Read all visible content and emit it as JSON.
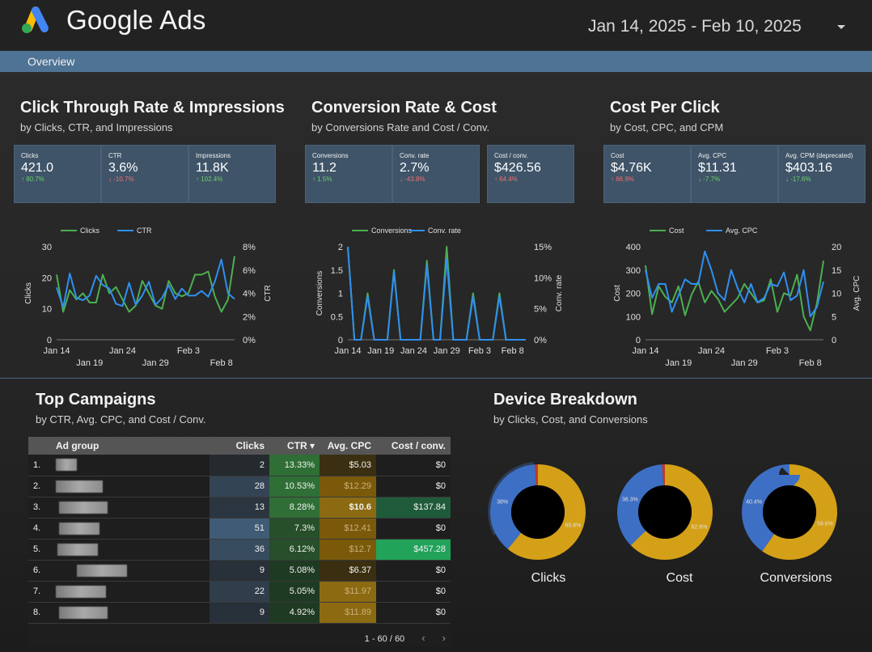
{
  "header": {
    "brand": "Google Ads",
    "date_range": "Jan 14, 2025 - Feb 10, 2025"
  },
  "nav": {
    "tab": "Overview"
  },
  "sections": [
    {
      "title": "Click Through Rate & Impressions",
      "subtitle": "by Clicks, CTR, and Impressions",
      "kpis": [
        {
          "label": "Clicks",
          "value": "421.0",
          "delta": "↑ 80.7%",
          "dir": "up"
        },
        {
          "label": "CTR",
          "value": "3.6%",
          "delta": "↓ -10.7%",
          "dir": "down"
        },
        {
          "label": "Impressions",
          "value": "11.8K",
          "delta": "↑ 102.4%",
          "dir": "up"
        }
      ]
    },
    {
      "title": "Conversion Rate & Cost",
      "subtitle": "by Conversions Rate and Cost / Conv.",
      "kpis": [
        {
          "label": "Conversions",
          "value": "11.2",
          "delta": "↑ 1.5%",
          "dir": "up"
        },
        {
          "label": "Conv. rate",
          "value": "2.7%",
          "delta": "↓ -43.8%",
          "dir": "down"
        },
        {
          "label": "Cost / conv.",
          "value": "$426.56",
          "delta": "↑ 64.4%",
          "dir": "down"
        }
      ]
    },
    {
      "title": "Cost Per Click",
      "subtitle": "by Cost, CPC, and CPM",
      "kpis": [
        {
          "label": "Cost",
          "value": "$4.76K",
          "delta": "↑ 66.9%",
          "dir": "down"
        },
        {
          "label": "Avg. CPC",
          "value": "$11.31",
          "delta": "↓ -7.7%",
          "dir": "up"
        },
        {
          "label": "Avg. CPM (deprecated)",
          "value": "$403.16",
          "delta": "↓ -17.6%",
          "dir": "up"
        }
      ]
    }
  ],
  "colors": {
    "green": "#4caf50",
    "blue": "#2f8ff0",
    "donut_blue": "#3d6fc4",
    "donut_gold": "#d4a017",
    "donut_red": "#c0392b",
    "ctr_bg": "#2e6b34",
    "cpc_bg": "#8a6a10",
    "cost_bg_mid": "#1f5a3a",
    "cost_bg_high": "#21a35a"
  },
  "chart_data": [
    {
      "type": "line",
      "x": [
        "Jan 14",
        "Jan 15",
        "Jan 16",
        "Jan 17",
        "Jan 18",
        "Jan 19",
        "Jan 20",
        "Jan 21",
        "Jan 22",
        "Jan 23",
        "Jan 24",
        "Jan 25",
        "Jan 26",
        "Jan 27",
        "Jan 28",
        "Jan 29",
        "Jan 30",
        "Jan 31",
        "Feb 1",
        "Feb 2",
        "Feb 3",
        "Feb 4",
        "Feb 5",
        "Feb 6",
        "Feb 7",
        "Feb 8",
        "Feb 9",
        "Feb 10"
      ],
      "xticks_top": [
        "Jan 14",
        "Jan 24",
        "Feb 3"
      ],
      "xticks_bottom": [
        "Jan 19",
        "Jan 29",
        "Feb 8"
      ],
      "series": [
        {
          "name": "Clicks",
          "axis": "left",
          "values": [
            21,
            9,
            16,
            13,
            15,
            12,
            12,
            21,
            15,
            17,
            13,
            9,
            11,
            19,
            15,
            11,
            10,
            19,
            15,
            14,
            15,
            21,
            21,
            22,
            14,
            9,
            13,
            27
          ]
        },
        {
          "name": "CTR",
          "axis": "right",
          "values": [
            4.5,
            2.8,
            5.7,
            3.6,
            3.4,
            3.8,
            5.5,
            4.7,
            4.4,
            3.1,
            2.9,
            4.9,
            3.0,
            3.8,
            5.0,
            3.0,
            3.6,
            4.7,
            3.5,
            4.4,
            3.8,
            3.8,
            4.2,
            3.7,
            5.0,
            6.9,
            4.0,
            3.5
          ]
        }
      ],
      "ylabel": "Clicks",
      "y2label": "CTR",
      "ylim": [
        0,
        30
      ],
      "y2lim": [
        0,
        8
      ],
      "yticks": [
        "0",
        "10",
        "20",
        "30"
      ],
      "y2ticks": [
        "0%",
        "2%",
        "4%",
        "6%",
        "8%"
      ],
      "legend": "top"
    },
    {
      "type": "line",
      "x": [
        "Jan 14",
        "Jan 15",
        "Jan 16",
        "Jan 17",
        "Jan 18",
        "Jan 19",
        "Jan 20",
        "Jan 21",
        "Jan 22",
        "Jan 23",
        "Jan 24",
        "Jan 25",
        "Jan 26",
        "Jan 27",
        "Jan 28",
        "Jan 29",
        "Jan 30",
        "Jan 31",
        "Feb 1",
        "Feb 2",
        "Feb 3",
        "Feb 4",
        "Feb 5",
        "Feb 6",
        "Feb 7",
        "Feb 8",
        "Feb 9",
        "Feb 10"
      ],
      "xticks_top": [
        "Jan 14",
        "Jan 19",
        "Jan 24",
        "Jan 29",
        "Feb 3",
        "Feb 8"
      ],
      "xticks_bottom": [],
      "series": [
        {
          "name": "Conversions",
          "axis": "left",
          "values": [
            2,
            0,
            0,
            1,
            0,
            0,
            0,
            1.5,
            0,
            0,
            0,
            0,
            1.7,
            0,
            0,
            2,
            0,
            0,
            0,
            1,
            0,
            0,
            0,
            1,
            0,
            0,
            0,
            0
          ]
        },
        {
          "name": "Conv. rate",
          "axis": "right",
          "values": [
            15,
            0,
            0,
            7,
            0,
            0,
            0,
            11,
            0,
            0,
            0,
            0,
            12,
            0,
            0,
            13,
            0,
            0,
            0,
            7,
            0,
            0,
            0,
            7,
            0,
            0,
            0,
            0
          ]
        }
      ],
      "ylabel": "Conversions",
      "y2label": "Conv. rate",
      "ylim": [
        0,
        2
      ],
      "y2lim": [
        0,
        15
      ],
      "yticks": [
        "0",
        "0.5",
        "1",
        "1.5",
        "2"
      ],
      "y2ticks": [
        "0%",
        "5%",
        "10%",
        "15%"
      ],
      "legend": "top"
    },
    {
      "type": "line",
      "x": [
        "Jan 14",
        "Jan 15",
        "Jan 16",
        "Jan 17",
        "Jan 18",
        "Jan 19",
        "Jan 20",
        "Jan 21",
        "Jan 22",
        "Jan 23",
        "Jan 24",
        "Jan 25",
        "Jan 26",
        "Jan 27",
        "Jan 28",
        "Jan 29",
        "Jan 30",
        "Jan 31",
        "Feb 1",
        "Feb 2",
        "Feb 3",
        "Feb 4",
        "Feb 5",
        "Feb 6",
        "Feb 7",
        "Feb 8",
        "Feb 9",
        "Feb 10"
      ],
      "xticks_top": [
        "Jan 14",
        "Jan 24",
        "Feb 3"
      ],
      "xticks_bottom": [
        "Jan 19",
        "Jan 29",
        "Feb 8"
      ],
      "series": [
        {
          "name": "Cost",
          "axis": "left",
          "values": [
            320,
            110,
            230,
            185,
            160,
            230,
            105,
            195,
            250,
            160,
            210,
            175,
            120,
            150,
            180,
            240,
            200,
            160,
            170,
            260,
            120,
            200,
            190,
            280,
            100,
            40,
            155,
            340
          ]
        },
        {
          "name": "Avg. CPC",
          "axis": "right",
          "values": [
            15,
            9,
            12,
            12,
            6,
            9.5,
            13,
            12,
            12,
            19,
            15,
            10,
            8.5,
            15,
            11,
            8,
            12,
            8,
            9,
            12,
            11.5,
            14.5,
            8.5,
            9.5,
            15,
            5,
            7,
            12.5
          ]
        }
      ],
      "ylabel": "Cost",
      "y2label": "Avg. CPC",
      "ylim": [
        0,
        400
      ],
      "y2lim": [
        0,
        20
      ],
      "yticks": [
        "0",
        "100",
        "200",
        "300",
        "400"
      ],
      "y2ticks": [
        "0",
        "5",
        "10",
        "15",
        "20"
      ],
      "legend": "top"
    }
  ],
  "campaigns": {
    "title": "Top Campaigns",
    "subtitle": "by CTR, Avg. CPC, and Cost / Conv.",
    "headers": [
      "Ad group",
      "Clicks",
      "CTR ▾",
      "Avg. CPC",
      "Cost / conv."
    ],
    "rows": [
      {
        "n": "1.",
        "clicks": "2",
        "ctr": "13.33%",
        "cpc": "$5.03",
        "cost": "$0"
      },
      {
        "n": "2.",
        "clicks": "28",
        "ctr": "10.53%",
        "cpc": "$12.29",
        "cost": "$0"
      },
      {
        "n": "3.",
        "clicks": "13",
        "ctr": "8.28%",
        "cpc": "$10.6",
        "cost": "$137.84"
      },
      {
        "n": "4.",
        "clicks": "51",
        "ctr": "7.3%",
        "cpc": "$12.41",
        "cost": "$0"
      },
      {
        "n": "5.",
        "clicks": "36",
        "ctr": "6.12%",
        "cpc": "$12.7",
        "cost": "$457.28"
      },
      {
        "n": "6.",
        "clicks": "9",
        "ctr": "5.08%",
        "cpc": "$6.37",
        "cost": "$0"
      },
      {
        "n": "7.",
        "clicks": "22",
        "ctr": "5.05%",
        "cpc": "$11.97",
        "cost": "$0"
      },
      {
        "n": "8.",
        "clicks": "9",
        "ctr": "4.92%",
        "cpc": "$11.89",
        "cost": "$0"
      }
    ],
    "pager": "1 - 60 / 60"
  },
  "devices": {
    "title": "Device Breakdown",
    "subtitle": "by Clicks, Cost, and Conversions",
    "donuts": [
      {
        "label": "Clicks",
        "slices": [
          {
            "pct": 60.8,
            "text": "60.8%",
            "color": "gold"
          },
          {
            "pct": 38.0,
            "text": "38%",
            "color": "blue"
          },
          {
            "pct": 1.2,
            "text": "",
            "color": "red"
          }
        ]
      },
      {
        "label": "Cost",
        "slices": [
          {
            "pct": 62.6,
            "text": "62.6%",
            "color": "gold"
          },
          {
            "pct": 36.3,
            "text": "36.3%",
            "color": "blue"
          },
          {
            "pct": 1.1,
            "text": "",
            "color": "red"
          }
        ]
      },
      {
        "label": "Conversions",
        "slices": [
          {
            "pct": 59.6,
            "text": "59.6%",
            "color": "gold"
          },
          {
            "pct": 40.4,
            "text": "40.4%",
            "color": "blue"
          }
        ]
      }
    ]
  }
}
